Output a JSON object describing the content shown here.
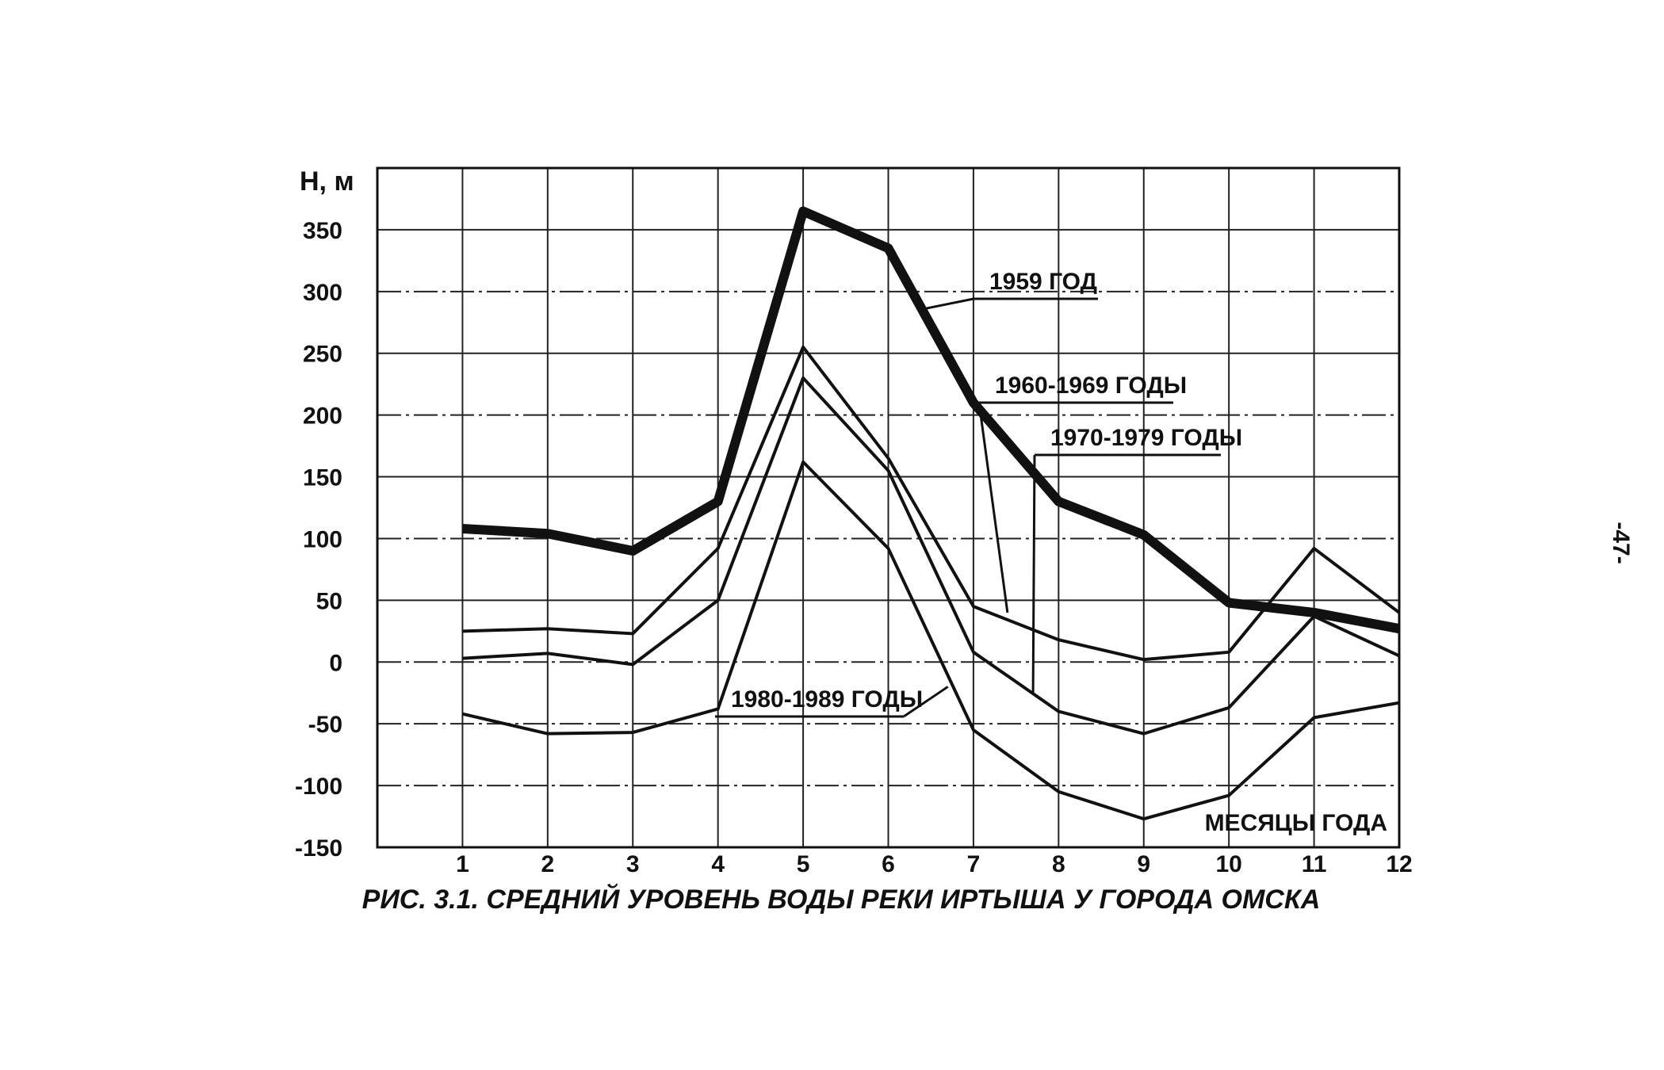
{
  "chart_data": {
    "type": "line",
    "title": "РИС. 3.1. СРЕДНИЙ УРОВЕНЬ ВОДЫ РЕКИ ИРТЫША У ГОРОДА ОМСКА",
    "ylabel": "H, м",
    "xlabel": "МЕСЯЦЫ ГОДА",
    "x": [
      1,
      2,
      3,
      4,
      5,
      6,
      7,
      8,
      9,
      10,
      11,
      12
    ],
    "x_tick_labels": [
      "1",
      "2",
      "3",
      "4",
      "5",
      "6",
      "7",
      "8",
      "9",
      "10",
      "11",
      "12"
    ],
    "y_ticks": [
      350,
      300,
      250,
      200,
      150,
      100,
      50,
      0,
      -50,
      -100,
      -150
    ],
    "y_tick_labels": [
      "350",
      "300",
      "250",
      "200",
      "150",
      "100",
      "50",
      "0",
      "-50",
      "-100",
      "-150"
    ],
    "xlim": [
      0,
      12
    ],
    "ylim": [
      -150,
      400
    ],
    "grid": true,
    "series": [
      {
        "name": "1959 ГОД",
        "values": [
          108,
          104,
          90,
          130,
          365,
          335,
          210,
          130,
          103,
          48,
          40,
          27
        ]
      },
      {
        "name": "1960-1969 ГОДЫ",
        "values": [
          25,
          27,
          23,
          92,
          255,
          165,
          45,
          18,
          2,
          8,
          92,
          40
        ]
      },
      {
        "name": "1970-1979 ГОДЫ",
        "values": [
          3,
          7,
          -2,
          50,
          230,
          155,
          8,
          -40,
          -58,
          -37,
          37,
          5
        ]
      },
      {
        "name": "1980-1989 ГОДЫ",
        "values": [
          -42,
          -58,
          -57,
          -38,
          162,
          92,
          -55,
          -105,
          -127,
          -108,
          -45,
          -33
        ]
      }
    ]
  },
  "page_number": "-47-"
}
